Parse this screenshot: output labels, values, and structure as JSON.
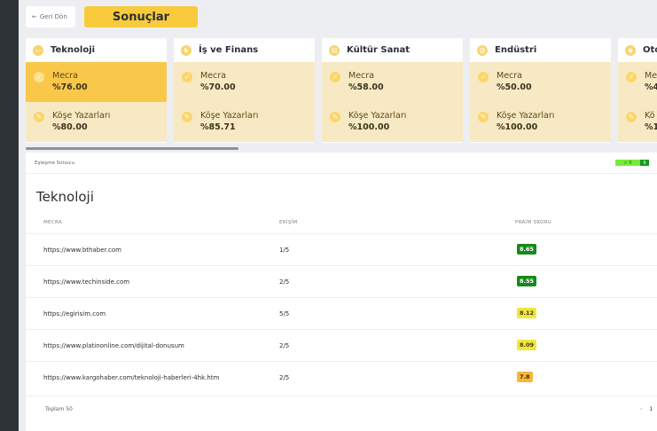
{
  "header": {
    "back_icon": "←",
    "back_label": "Geri Dön",
    "title": "Sonuçlar"
  },
  "categories": [
    {
      "name": "Teknoloji",
      "icon": "laptop-icon",
      "glyph": "▭",
      "media_label": "Mecra",
      "media_value": "%76.00",
      "writers_label": "Köşe Yazarları",
      "writers_value": "%80.00",
      "active": true
    },
    {
      "name": "İş ve Finans",
      "icon": "money-icon",
      "glyph": "₺",
      "media_label": "Mecra",
      "media_value": "%70.00",
      "writers_label": "Köşe Yazarları",
      "writers_value": "%85.71",
      "active": false
    },
    {
      "name": "Kültür Sanat",
      "icon": "palette-icon",
      "glyph": "▤",
      "media_label": "Mecra",
      "media_value": "%58.00",
      "writers_label": "Köşe Yazarları",
      "writers_value": "%100.00",
      "active": false
    },
    {
      "name": "Endüstri",
      "icon": "factory-icon",
      "glyph": "▥",
      "media_label": "Mecra",
      "media_value": "%50.00",
      "writers_label": "Köşe Yazarları",
      "writers_value": "%100.00",
      "active": false
    },
    {
      "name": "Oto",
      "icon": "car-icon",
      "glyph": "◉",
      "media_label": "Me",
      "media_value": "%4",
      "writers_label": "Kö",
      "writers_value": "%1",
      "active": false
    }
  ],
  "metric_icons": {
    "media": "check-icon",
    "writers": "pen-icon"
  },
  "panel": {
    "bar_label": "Eşleşme Sonucu",
    "legend": [
      {
        "label": "> 9",
        "color": "#76ea3c"
      },
      {
        "label": "9",
        "color": "#159a1a"
      }
    ],
    "section_title": "Teknoloji",
    "columns": {
      "media": "MECRA",
      "reach": "ERİŞİM",
      "score": "PRAİM SKORU"
    },
    "rows": [
      {
        "url": "https://www.bthaber.com",
        "reach": "1/5",
        "score": "8.65",
        "level": "dark"
      },
      {
        "url": "https://www.techinside.com",
        "reach": "2/5",
        "score": "8.55",
        "level": "dark"
      },
      {
        "url": "https://egirisim.com",
        "reach": "5/5",
        "score": "8.12",
        "level": "yellow"
      },
      {
        "url": "https://www.platinonline.com/dijital-donusum",
        "reach": "2/5",
        "score": "8.09",
        "level": "yellow"
      },
      {
        "url": "https://www.kargohaber.com/teknoloji-haberleri-4hk.htm",
        "reach": "2/5",
        "score": "7.8",
        "level": "orange"
      }
    ],
    "total": "Toplam 50",
    "pager": {
      "prev": "‹",
      "current": "1"
    }
  },
  "colors": {
    "accent": "#f9cb3c",
    "card_metric": "#f7e9c3",
    "card_metric_active": "#f9c84a",
    "score_dark": "#16891a",
    "score_yellow": "#f3e53c",
    "score_orange": "#f6b73a",
    "sidebar": "#2e3338"
  }
}
